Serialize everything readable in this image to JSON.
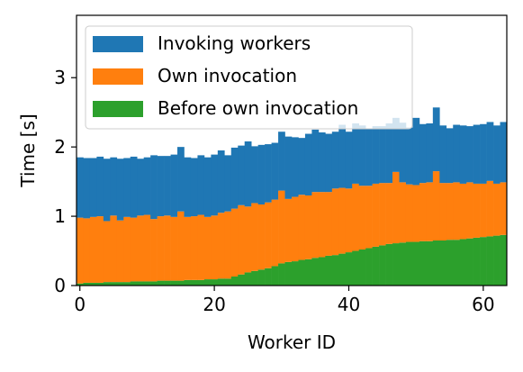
{
  "chart_data": {
    "type": "bar",
    "stacked": true,
    "xlabel": "Worker ID",
    "ylabel": "Time [s]",
    "xlim": [
      -0.5,
      63.5
    ],
    "ylim": [
      0,
      3.9
    ],
    "xticks": [
      0,
      20,
      40,
      60
    ],
    "yticks": [
      0,
      1,
      2,
      3
    ],
    "legend_position": "upper-left",
    "grid": false,
    "x": [
      0,
      1,
      2,
      3,
      4,
      5,
      6,
      7,
      8,
      9,
      10,
      11,
      12,
      13,
      14,
      15,
      16,
      17,
      18,
      19,
      20,
      21,
      22,
      23,
      24,
      25,
      26,
      27,
      28,
      29,
      30,
      31,
      32,
      33,
      34,
      35,
      36,
      37,
      38,
      39,
      40,
      41,
      42,
      43,
      44,
      45,
      46,
      47,
      48,
      49,
      50,
      51,
      52,
      53,
      54,
      55,
      56,
      57,
      58,
      59,
      60,
      61,
      62,
      63
    ],
    "series": [
      {
        "name": "Before own invocation",
        "color": "#2ca02c",
        "values": [
          0.03,
          0.04,
          0.04,
          0.04,
          0.05,
          0.05,
          0.05,
          0.05,
          0.06,
          0.06,
          0.06,
          0.06,
          0.07,
          0.07,
          0.07,
          0.07,
          0.08,
          0.08,
          0.08,
          0.09,
          0.09,
          0.1,
          0.1,
          0.13,
          0.16,
          0.19,
          0.21,
          0.23,
          0.25,
          0.28,
          0.32,
          0.34,
          0.35,
          0.37,
          0.38,
          0.4,
          0.41,
          0.43,
          0.44,
          0.46,
          0.48,
          0.5,
          0.52,
          0.54,
          0.56,
          0.58,
          0.6,
          0.61,
          0.62,
          0.63,
          0.63,
          0.64,
          0.64,
          0.65,
          0.65,
          0.66,
          0.66,
          0.67,
          0.68,
          0.69,
          0.7,
          0.71,
          0.72,
          0.73
        ]
      },
      {
        "name": "Own invocation",
        "color": "#ff7f0e",
        "values": [
          0.95,
          0.93,
          0.95,
          0.96,
          0.88,
          0.96,
          0.89,
          0.94,
          0.92,
          0.95,
          0.96,
          0.9,
          0.93,
          0.94,
          0.92,
          1.0,
          0.91,
          0.92,
          0.94,
          0.9,
          0.92,
          0.95,
          0.97,
          0.98,
          1.0,
          0.95,
          0.98,
          0.94,
          0.95,
          0.96,
          1.05,
          0.91,
          0.93,
          0.94,
          0.92,
          0.95,
          0.94,
          0.92,
          0.96,
          0.95,
          0.92,
          0.97,
          0.92,
          0.9,
          0.91,
          0.9,
          0.88,
          1.03,
          0.87,
          0.83,
          0.82,
          0.84,
          0.85,
          1.0,
          0.83,
          0.82,
          0.83,
          0.8,
          0.81,
          0.78,
          0.77,
          0.8,
          0.75,
          0.76
        ]
      },
      {
        "name": "Invoking workers",
        "color": "#1f77b4",
        "values": [
          0.87,
          0.87,
          0.85,
          0.86,
          0.9,
          0.84,
          0.89,
          0.85,
          0.88,
          0.82,
          0.83,
          0.92,
          0.87,
          0.86,
          0.9,
          0.93,
          0.86,
          0.84,
          0.86,
          0.86,
          0.88,
          0.9,
          0.81,
          0.88,
          0.86,
          0.94,
          0.82,
          0.86,
          0.84,
          0.82,
          0.85,
          0.9,
          0.86,
          0.82,
          0.89,
          0.9,
          0.86,
          0.84,
          0.82,
          0.91,
          0.82,
          0.87,
          0.87,
          0.82,
          0.83,
          0.82,
          0.86,
          0.78,
          0.86,
          0.82,
          0.97,
          0.85,
          0.85,
          0.92,
          0.83,
          0.79,
          0.83,
          0.84,
          0.81,
          0.85,
          0.86,
          0.85,
          0.84,
          0.87
        ]
      }
    ],
    "legend": [
      {
        "label": "Invoking workers",
        "color": "#1f77b4"
      },
      {
        "label": "Own invocation",
        "color": "#ff7f0e"
      },
      {
        "label": "Before own invocation",
        "color": "#2ca02c"
      }
    ]
  }
}
